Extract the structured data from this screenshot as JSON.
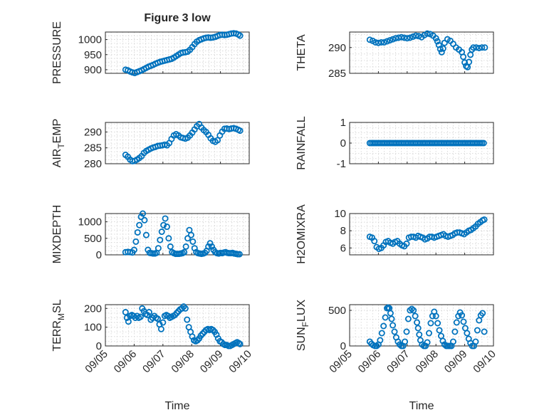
{
  "chart_data": [
    {
      "type": "scatter",
      "title": "Figure 3 low",
      "ylabel": "PRESSURE",
      "xlabel": "",
      "xlim": [
        0,
        5
      ],
      "ylim": [
        888,
        1025
      ],
      "yticks": [
        900,
        950,
        1000
      ],
      "xticks": [
        "09/05",
        "09/06",
        "09/07",
        "09/08",
        "09/09",
        "09/10"
      ],
      "show_xticklabels": false,
      "grid": true,
      "minor_grid": true,
      "color": "#0072BD",
      "x": [
        0.7,
        0.78,
        0.86,
        0.94,
        1.02,
        1.1,
        1.18,
        1.26,
        1.34,
        1.42,
        1.5,
        1.58,
        1.66,
        1.74,
        1.82,
        1.9,
        1.98,
        2.06,
        2.14,
        2.22,
        2.3,
        2.38,
        2.46,
        2.54,
        2.62,
        2.7,
        2.78,
        2.86,
        2.94,
        3.02,
        3.1,
        3.18,
        3.26,
        3.34,
        3.42,
        3.5,
        3.58,
        3.66,
        3.74,
        3.82,
        3.9,
        3.98,
        4.06,
        4.14,
        4.22,
        4.3,
        4.38,
        4.46,
        4.54,
        4.62,
        4.68
      ],
      "y": [
        900,
        898,
        894,
        891,
        889,
        892,
        895,
        898,
        902,
        906,
        910,
        913,
        916,
        920,
        923,
        926,
        928,
        930,
        932,
        934,
        936,
        940,
        945,
        950,
        955,
        957,
        958,
        960,
        966,
        975,
        985,
        993,
        998,
        1001,
        1004,
        1006,
        1007,
        1006,
        1007,
        1009,
        1012,
        1015,
        1016,
        1015,
        1016,
        1018,
        1020,
        1021,
        1020,
        1017,
        1013
      ]
    },
    {
      "type": "scatter",
      "title": "",
      "ylabel": "THETA",
      "xlabel": "",
      "xlim": [
        0,
        5
      ],
      "ylim": [
        285,
        293
      ],
      "yticks": [
        285,
        290
      ],
      "xticks": [
        "09/05",
        "09/06",
        "09/07",
        "09/08",
        "09/09",
        "09/10"
      ],
      "show_xticklabels": false,
      "grid": true,
      "minor_grid": true,
      "color": "#0072BD",
      "x": [
        0.7,
        0.8,
        0.9,
        1.0,
        1.1,
        1.2,
        1.3,
        1.4,
        1.5,
        1.6,
        1.7,
        1.8,
        1.9,
        2.0,
        2.1,
        2.2,
        2.3,
        2.4,
        2.5,
        2.6,
        2.7,
        2.8,
        2.9,
        3.0,
        3.05,
        3.1,
        3.15,
        3.2,
        3.25,
        3.3,
        3.4,
        3.5,
        3.6,
        3.7,
        3.8,
        3.9,
        3.95,
        4.0,
        4.05,
        4.1,
        4.15,
        4.2,
        4.25,
        4.3,
        4.4,
        4.5,
        4.6,
        4.7
      ],
      "y": [
        291.5,
        291.3,
        291.0,
        290.9,
        291.0,
        291.0,
        291.2,
        291.4,
        291.6,
        291.8,
        291.9,
        292.0,
        291.9,
        291.8,
        291.9,
        292.1,
        292.3,
        292.2,
        292.0,
        292.4,
        292.7,
        292.6,
        292.3,
        291.8,
        291.2,
        290.5,
        289.7,
        289.1,
        289.8,
        290.9,
        291.6,
        291.3,
        290.7,
        290.0,
        289.6,
        289.1,
        288.2,
        287.1,
        286.4,
        286.2,
        287.2,
        288.6,
        289.6,
        290.0,
        290.0,
        289.9,
        290.0,
        290.0
      ]
    },
    {
      "type": "scatter",
      "title": "",
      "ylabel": "AIR_TEMP",
      "ylabel_main": "AIR",
      "ylabel_sub": "T",
      "ylabel_rest": "EMP",
      "xlabel": "",
      "xlim": [
        0,
        5
      ],
      "ylim": [
        280,
        293
      ],
      "yticks": [
        280,
        285,
        290
      ],
      "xticks": [
        "09/05",
        "09/06",
        "09/07",
        "09/08",
        "09/09",
        "09/10"
      ],
      "show_xticklabels": false,
      "grid": true,
      "minor_grid": true,
      "color": "#0072BD",
      "x": [
        0.7,
        0.78,
        0.86,
        0.94,
        1.02,
        1.1,
        1.18,
        1.26,
        1.34,
        1.42,
        1.5,
        1.58,
        1.66,
        1.74,
        1.82,
        1.9,
        1.98,
        2.06,
        2.14,
        2.22,
        2.3,
        2.38,
        2.46,
        2.54,
        2.62,
        2.7,
        2.78,
        2.86,
        2.94,
        3.02,
        3.1,
        3.18,
        3.26,
        3.34,
        3.42,
        3.5,
        3.58,
        3.66,
        3.74,
        3.82,
        3.9,
        3.98,
        4.06,
        4.14,
        4.22,
        4.3,
        4.38,
        4.46,
        4.54,
        4.62,
        4.68
      ],
      "y": [
        282.8,
        282.2,
        281.3,
        280.8,
        280.9,
        281.3,
        281.8,
        282.4,
        283.4,
        284.0,
        284.4,
        284.8,
        285.1,
        285.3,
        285.6,
        285.7,
        285.8,
        286.0,
        285.8,
        286.5,
        287.8,
        288.9,
        289.3,
        288.9,
        288.3,
        288.1,
        287.9,
        288.2,
        288.9,
        289.8,
        290.8,
        291.8,
        292.5,
        291.4,
        290.6,
        290.0,
        289.1,
        288.0,
        287.2,
        286.9,
        287.4,
        288.9,
        290.1,
        291.0,
        291.1,
        290.9,
        291.1,
        291.2,
        291.0,
        290.7,
        290.4
      ]
    },
    {
      "type": "scatter",
      "title": "",
      "ylabel": "RAINFALL",
      "xlabel": "",
      "xlim": [
        0,
        5
      ],
      "ylim": [
        -1,
        1
      ],
      "yticks": [
        -1,
        0,
        1
      ],
      "xticks": [
        "09/05",
        "09/06",
        "09/07",
        "09/08",
        "09/09",
        "09/10"
      ],
      "show_xticklabels": false,
      "grid": true,
      "minor_grid": true,
      "color": "#0072BD",
      "x": [
        0.7,
        0.76,
        0.82,
        0.88,
        0.94,
        1.0,
        1.06,
        1.12,
        1.18,
        1.24,
        1.3,
        1.36,
        1.42,
        1.48,
        1.54,
        1.6,
        1.66,
        1.72,
        1.78,
        1.84,
        1.9,
        1.96,
        2.02,
        2.08,
        2.14,
        2.2,
        2.26,
        2.32,
        2.38,
        2.44,
        2.5,
        2.56,
        2.62,
        2.68,
        2.74,
        2.8,
        2.86,
        2.92,
        2.98,
        3.04,
        3.1,
        3.16,
        3.22,
        3.28,
        3.34,
        3.4,
        3.46,
        3.52,
        3.58,
        3.64,
        3.7,
        3.76,
        3.82,
        3.88,
        3.94,
        4.0,
        4.06,
        4.12,
        4.18,
        4.24,
        4.3,
        4.36,
        4.42,
        4.48,
        4.54,
        4.6,
        4.66
      ],
      "y": [
        0,
        0,
        0,
        0,
        0,
        0,
        0,
        0,
        0,
        0,
        0,
        0,
        0,
        0,
        0,
        0,
        0,
        0,
        0,
        0,
        0,
        0,
        0,
        0,
        0,
        0,
        0,
        0,
        0,
        0,
        0,
        0,
        0,
        0,
        0,
        0,
        0,
        0,
        0,
        0,
        0,
        0,
        0,
        0,
        0,
        0,
        0,
        0,
        0,
        0,
        0,
        0,
        0,
        0,
        0,
        0,
        0,
        0,
        0,
        0,
        0,
        0,
        0,
        0,
        0,
        0,
        0
      ]
    },
    {
      "type": "scatter",
      "title": "",
      "ylabel": "MIXDEPTH",
      "xlabel": "",
      "xlim": [
        0,
        5
      ],
      "ylim": [
        0,
        1250
      ],
      "yticks": [
        0,
        500,
        1000
      ],
      "xticks": [
        "09/05",
        "09/06",
        "09/07",
        "09/08",
        "09/09",
        "09/10"
      ],
      "show_xticklabels": false,
      "grid": true,
      "minor_grid": true,
      "color": "#0072BD",
      "x": [
        0.7,
        0.78,
        0.86,
        0.94,
        1.0,
        1.06,
        1.12,
        1.18,
        1.24,
        1.3,
        1.36,
        1.42,
        1.48,
        1.54,
        1.6,
        1.66,
        1.72,
        1.78,
        1.84,
        1.9,
        1.96,
        2.02,
        2.08,
        2.14,
        2.2,
        2.26,
        2.32,
        2.38,
        2.44,
        2.5,
        2.56,
        2.62,
        2.68,
        2.74,
        2.8,
        2.86,
        2.92,
        2.98,
        3.04,
        3.1,
        3.16,
        3.22,
        3.28,
        3.34,
        3.4,
        3.46,
        3.52,
        3.58,
        3.64,
        3.7,
        3.76,
        3.82,
        3.88,
        3.94,
        4.0,
        4.06,
        4.12,
        4.18,
        4.24,
        4.3,
        4.36,
        4.42,
        4.48,
        4.54,
        4.6,
        4.66
      ],
      "y": [
        80,
        90,
        80,
        70,
        150,
        400,
        680,
        900,
        1150,
        1250,
        1050,
        600,
        150,
        60,
        50,
        40,
        40,
        60,
        200,
        450,
        700,
        900,
        1100,
        850,
        500,
        250,
        80,
        50,
        30,
        30,
        30,
        40,
        50,
        80,
        250,
        500,
        750,
        600,
        400,
        200,
        80,
        50,
        40,
        30,
        40,
        60,
        120,
        250,
        350,
        250,
        150,
        80,
        50,
        40,
        60,
        50,
        70,
        80,
        60,
        50,
        50,
        60,
        40,
        30,
        20,
        20
      ]
    },
    {
      "type": "scatter",
      "title": "",
      "ylabel": "H2OMIXRA",
      "xlabel": "",
      "xlim": [
        0,
        5
      ],
      "ylim": [
        5.2,
        10
      ],
      "yticks": [
        6,
        8,
        10
      ],
      "xticks": [
        "09/05",
        "09/06",
        "09/07",
        "09/08",
        "09/09",
        "09/10"
      ],
      "show_xticklabels": false,
      "grid": true,
      "minor_grid": true,
      "color": "#0072BD",
      "x": [
        0.7,
        0.78,
        0.86,
        0.94,
        1.02,
        1.1,
        1.18,
        1.26,
        1.34,
        1.42,
        1.5,
        1.58,
        1.66,
        1.74,
        1.82,
        1.9,
        1.98,
        2.06,
        2.14,
        2.22,
        2.3,
        2.38,
        2.46,
        2.54,
        2.62,
        2.7,
        2.78,
        2.86,
        2.94,
        3.02,
        3.1,
        3.18,
        3.26,
        3.34,
        3.42,
        3.5,
        3.58,
        3.66,
        3.74,
        3.82,
        3.9,
        3.98,
        4.06,
        4.14,
        4.22,
        4.3,
        4.38,
        4.46,
        4.54,
        4.62,
        4.68
      ],
      "y": [
        7.3,
        7.2,
        6.8,
        6.1,
        5.9,
        6.0,
        6.3,
        6.7,
        6.8,
        6.6,
        6.5,
        6.7,
        6.8,
        6.5,
        6.3,
        6.2,
        6.5,
        7.2,
        7.3,
        7.3,
        7.2,
        7.4,
        7.3,
        7.2,
        7.0,
        7.1,
        7.3,
        7.3,
        7.2,
        7.3,
        7.4,
        7.5,
        7.6,
        7.4,
        7.3,
        7.4,
        7.5,
        7.7,
        7.8,
        7.8,
        7.7,
        7.6,
        7.8,
        8.0,
        8.1,
        8.3,
        8.5,
        8.8,
        9.0,
        9.2,
        9.3
      ]
    },
    {
      "type": "scatter",
      "title": "",
      "ylabel": "TERR_MSL",
      "ylabel_main": "TERR",
      "ylabel_sub": "M",
      "ylabel_rest": "SL",
      "xlabel": "Time",
      "xlim": [
        0,
        5
      ],
      "ylim": [
        0,
        220
      ],
      "yticks": [
        0,
        100,
        200
      ],
      "xticks": [
        "09/05",
        "09/06",
        "09/07",
        "09/08",
        "09/09",
        "09/10"
      ],
      "show_xticklabels": true,
      "grid": true,
      "minor_grid": true,
      "color": "#0072BD",
      "x": [
        0.7,
        0.75,
        0.8,
        0.86,
        0.92,
        0.98,
        1.04,
        1.1,
        1.16,
        1.22,
        1.28,
        1.34,
        1.4,
        1.46,
        1.52,
        1.58,
        1.64,
        1.7,
        1.76,
        1.82,
        1.88,
        1.94,
        2.0,
        2.06,
        2.12,
        2.18,
        2.24,
        2.3,
        2.36,
        2.42,
        2.48,
        2.54,
        2.6,
        2.66,
        2.72,
        2.78,
        2.84,
        2.9,
        2.96,
        3.02,
        3.08,
        3.14,
        3.2,
        3.26,
        3.32,
        3.38,
        3.44,
        3.5,
        3.56,
        3.62,
        3.68,
        3.74,
        3.8,
        3.86,
        3.92,
        3.98,
        4.04,
        4.1,
        4.16,
        4.22,
        4.28,
        4.34,
        4.4,
        4.46,
        4.52,
        4.58,
        4.64,
        4.68
      ],
      "y": [
        180,
        150,
        130,
        160,
        165,
        160,
        150,
        160,
        150,
        155,
        200,
        185,
        170,
        165,
        180,
        140,
        150,
        160,
        150,
        145,
        115,
        90,
        125,
        160,
        165,
        160,
        150,
        155,
        160,
        165,
        175,
        185,
        195,
        200,
        210,
        200,
        140,
        100,
        75,
        50,
        30,
        25,
        30,
        40,
        55,
        65,
        75,
        85,
        90,
        85,
        90,
        85,
        75,
        60,
        40,
        25,
        20,
        10,
        5,
        5,
        0,
        0,
        5,
        10,
        15,
        20,
        15,
        10
      ]
    },
    {
      "type": "scatter",
      "title": "",
      "ylabel": "SUN_FLUX",
      "ylabel_main": "SUN",
      "ylabel_sub": "F",
      "ylabel_rest": "LUX",
      "xlabel": "Time",
      "xlim": [
        0,
        5
      ],
      "ylim": [
        0,
        580
      ],
      "yticks": [
        0,
        500
      ],
      "xticks": [
        "09/05",
        "09/06",
        "09/07",
        "09/08",
        "09/09",
        "09/10"
      ],
      "show_xticklabels": true,
      "grid": true,
      "minor_grid": true,
      "color": "#0072BD",
      "x": [
        0.7,
        0.76,
        0.82,
        0.88,
        0.94,
        1.0,
        1.06,
        1.12,
        1.18,
        1.24,
        1.3,
        1.34,
        1.38,
        1.42,
        1.46,
        1.5,
        1.56,
        1.62,
        1.68,
        1.74,
        1.8,
        1.86,
        1.92,
        1.98,
        2.04,
        2.1,
        2.16,
        2.22,
        2.28,
        2.34,
        2.38,
        2.42,
        2.46,
        2.52,
        2.58,
        2.64,
        2.7,
        2.76,
        2.82,
        2.88,
        2.94,
        3.0,
        3.06,
        3.12,
        3.18,
        3.24,
        3.3,
        3.36,
        3.42,
        3.48,
        3.54,
        3.6,
        3.66,
        3.72,
        3.78,
        3.84,
        3.9,
        3.96,
        4.02,
        4.08,
        4.14,
        4.2,
        4.26,
        4.32,
        4.38,
        4.44,
        4.5,
        4.56,
        4.62,
        4.68
      ],
      "y": [
        60,
        30,
        10,
        0,
        0,
        20,
        80,
        180,
        280,
        400,
        530,
        540,
        530,
        460,
        380,
        290,
        200,
        120,
        60,
        20,
        0,
        0,
        60,
        200,
        380,
        500,
        520,
        500,
        420,
        330,
        250,
        160,
        80,
        20,
        0,
        0,
        50,
        180,
        320,
        420,
        480,
        420,
        320,
        220,
        140,
        70,
        20,
        0,
        0,
        0,
        0,
        60,
        200,
        330,
        420,
        470,
        430,
        340,
        250,
        180,
        100,
        40,
        0,
        0,
        60,
        220,
        360,
        430,
        460,
        200
      ]
    }
  ]
}
